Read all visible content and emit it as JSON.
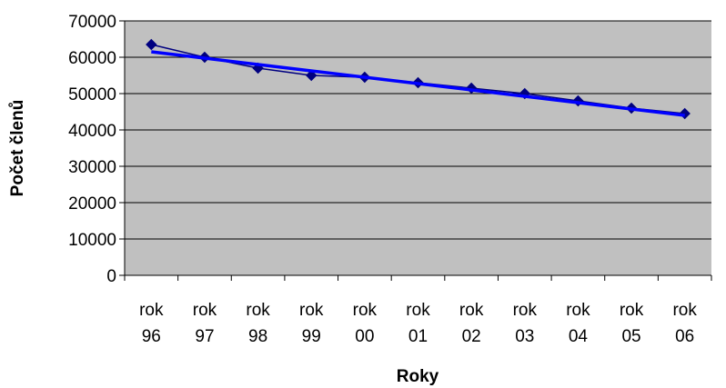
{
  "chart_data": {
    "type": "line",
    "categories": [
      [
        "rok",
        "96"
      ],
      [
        "rok",
        "97"
      ],
      [
        "rok",
        "98"
      ],
      [
        "rok",
        "99"
      ],
      [
        "rok",
        "00"
      ],
      [
        "rok",
        "01"
      ],
      [
        "rok",
        "02"
      ],
      [
        "rok",
        "03"
      ],
      [
        "rok",
        "04"
      ],
      [
        "rok",
        "05"
      ],
      [
        "rok",
        "06"
      ]
    ],
    "series": [
      {
        "values": [
          63500,
          60000,
          57000,
          55000,
          54500,
          53000,
          51500,
          50000,
          48000,
          46000,
          44500
        ],
        "color": "#000080",
        "marker": "diamond"
      }
    ],
    "trendline": {
      "type": "linear",
      "color": "#0000ff",
      "values": [
        61500,
        59750,
        58000,
        56250,
        54500,
        52750,
        51000,
        49250,
        47500,
        45750,
        44000
      ]
    },
    "xlabel": "Roky",
    "ylabel": "Počet členů",
    "ylim": [
      0,
      70000
    ],
    "yticks": [
      "0",
      "10000",
      "20000",
      "30000",
      "40000",
      "50000",
      "60000",
      "70000"
    ],
    "plot_background": "#c0c0c0",
    "grid": true
  }
}
